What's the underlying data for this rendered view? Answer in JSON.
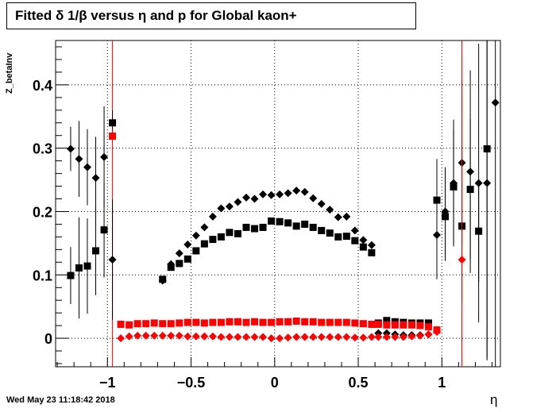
{
  "chart_data": {
    "type": "scatter",
    "title": "Fitted δ 1/β versus η and p for Global kaon+",
    "xlabel": "η",
    "ylabel": "Z_betaInv",
    "xlim": [
      -1.31,
      1.35
    ],
    "ylim": [
      -0.045,
      0.47
    ],
    "xticks": [
      -1,
      -0.5,
      0,
      0.5,
      1
    ],
    "yticks": [
      0,
      0.1,
      0.2,
      0.3,
      0.4
    ],
    "xtick_labels": [
      "−1",
      "−0.5",
      "0",
      "0.5",
      "1"
    ],
    "ytick_labels": [
      "0",
      "0.1",
      "0.2",
      "0.3",
      "0.4"
    ],
    "grid": true,
    "legend": "none",
    "vertical_lines": [
      -0.97,
      1.12
    ],
    "vline_color": "#ff0000",
    "series": [
      {
        "marker": "square",
        "color": "#000000",
        "x": [
          -1.22,
          -1.17,
          -1.12,
          -1.07,
          -1.02,
          -0.97,
          -0.67,
          -0.62,
          -0.57,
          -0.52,
          -0.47,
          -0.42,
          -0.37,
          -0.32,
          -0.27,
          -0.22,
          -0.17,
          -0.12,
          -0.07,
          -0.02,
          0.03,
          0.08,
          0.13,
          0.18,
          0.23,
          0.28,
          0.33,
          0.38,
          0.43,
          0.48,
          0.53,
          0.58,
          0.62,
          0.67,
          0.72,
          0.77,
          0.82,
          0.87,
          0.92,
          0.97,
          1.02,
          1.07,
          1.12,
          1.17,
          1.22,
          1.27
        ],
        "y": [
          0.099,
          0.111,
          0.114,
          0.138,
          0.171,
          0.34,
          0.093,
          0.112,
          0.118,
          0.125,
          0.138,
          0.149,
          0.156,
          0.16,
          0.167,
          0.165,
          0.175,
          0.173,
          0.175,
          0.185,
          0.184,
          0.182,
          0.177,
          0.18,
          0.175,
          0.17,
          0.166,
          0.16,
          0.161,
          0.154,
          0.144,
          0.135,
          0.024,
          0.028,
          0.026,
          0.025,
          0.024,
          0.024,
          0.024,
          0.218,
          0.192,
          0.239,
          0.177,
          0.235,
          0.169,
          0.299
        ],
        "err": [
          0.045,
          0.08,
          0.075,
          0.07,
          0.075,
          0.02,
          0.005,
          0.005,
          0.005,
          0.005,
          0.005,
          0.005,
          0.005,
          0.005,
          0.005,
          0.005,
          0.005,
          0.005,
          0.005,
          0.005,
          0.005,
          0.005,
          0.005,
          0.005,
          0.005,
          0.005,
          0.005,
          0.005,
          0.005,
          0.005,
          0.005,
          0.005,
          0.003,
          0.003,
          0.003,
          0.003,
          0.003,
          0.003,
          0.003,
          0.065,
          0.07,
          0.09,
          0.12,
          0.11,
          0.08,
          0.33
        ]
      },
      {
        "marker": "diamond",
        "color": "#000000",
        "x": [
          -1.22,
          -1.17,
          -1.12,
          -1.07,
          -1.02,
          -0.97,
          -0.67,
          -0.62,
          -0.57,
          -0.52,
          -0.47,
          -0.42,
          -0.37,
          -0.32,
          -0.27,
          -0.22,
          -0.17,
          -0.12,
          -0.07,
          -0.02,
          0.03,
          0.08,
          0.13,
          0.18,
          0.23,
          0.28,
          0.33,
          0.38,
          0.43,
          0.48,
          0.53,
          0.58,
          0.62,
          0.67,
          0.72,
          0.77,
          0.82,
          0.87,
          0.92,
          0.97,
          1.02,
          1.07,
          1.12,
          1.17,
          1.22,
          1.27,
          1.32
        ],
        "y": [
          0.299,
          0.283,
          0.27,
          0.253,
          0.286,
          0.124,
          0.091,
          0.117,
          0.134,
          0.148,
          0.162,
          0.175,
          0.192,
          0.205,
          0.208,
          0.215,
          0.222,
          0.22,
          0.227,
          0.226,
          0.227,
          0.229,
          0.233,
          0.231,
          0.221,
          0.212,
          0.203,
          0.191,
          0.192,
          0.17,
          0.155,
          0.147,
          0.008,
          0.008,
          0.006,
          0.005,
          0.005,
          0.005,
          0.006,
          0.163,
          0.2,
          0.245,
          0.277,
          0.263,
          0.245,
          0.245,
          0.372
        ],
        "err": [
          0.035,
          0.06,
          0.06,
          0.065,
          0.08,
          0.095,
          0.005,
          0.005,
          0.005,
          0.005,
          0.005,
          0.005,
          0.005,
          0.005,
          0.005,
          0.005,
          0.005,
          0.005,
          0.005,
          0.005,
          0.005,
          0.005,
          0.005,
          0.005,
          0.005,
          0.005,
          0.005,
          0.005,
          0.005,
          0.005,
          0.005,
          0.005,
          0.003,
          0.003,
          0.003,
          0.003,
          0.003,
          0.003,
          0.003,
          0.07,
          0.07,
          0.1,
          0.13,
          0.16,
          0.22,
          0.28,
          0.42
        ]
      },
      {
        "marker": "square",
        "color": "#ff0000",
        "x": [
          -0.97,
          -0.92,
          -0.87,
          -0.82,
          -0.77,
          -0.72,
          -0.67,
          -0.62,
          -0.57,
          -0.52,
          -0.47,
          -0.42,
          -0.37,
          -0.32,
          -0.27,
          -0.22,
          -0.17,
          -0.12,
          -0.07,
          -0.02,
          0.03,
          0.08,
          0.13,
          0.18,
          0.23,
          0.28,
          0.33,
          0.38,
          0.43,
          0.48,
          0.53,
          0.58,
          0.62,
          0.67,
          0.72,
          0.77,
          0.82,
          0.87,
          0.92,
          0.97
        ],
        "y": [
          0.319,
          0.022,
          0.021,
          0.023,
          0.023,
          0.024,
          0.023,
          0.023,
          0.024,
          0.025,
          0.025,
          0.024,
          0.025,
          0.025,
          0.026,
          0.026,
          0.025,
          0.026,
          0.025,
          0.025,
          0.026,
          0.026,
          0.027,
          0.026,
          0.026,
          0.025,
          0.025,
          0.025,
          0.025,
          0.024,
          0.023,
          0.022,
          0.022,
          0.021,
          0.021,
          0.021,
          0.021,
          0.02,
          0.018,
          0.013
        ],
        "err": [
          0.01,
          0.004,
          0.003,
          0.003,
          0.003,
          0.003,
          0.003,
          0.003,
          0.003,
          0.003,
          0.003,
          0.003,
          0.003,
          0.003,
          0.003,
          0.003,
          0.003,
          0.003,
          0.003,
          0.003,
          0.003,
          0.003,
          0.003,
          0.003,
          0.003,
          0.003,
          0.003,
          0.003,
          0.003,
          0.003,
          0.003,
          0.003,
          0.003,
          0.003,
          0.003,
          0.003,
          0.003,
          0.003,
          0.003,
          0.006
        ]
      },
      {
        "marker": "diamond",
        "color": "#ff0000",
        "x": [
          -0.92,
          -0.87,
          -0.82,
          -0.77,
          -0.72,
          -0.67,
          -0.62,
          -0.57,
          -0.52,
          -0.47,
          -0.42,
          -0.37,
          -0.32,
          -0.27,
          -0.22,
          -0.17,
          -0.12,
          -0.07,
          -0.02,
          0.03,
          0.08,
          0.13,
          0.18,
          0.23,
          0.28,
          0.33,
          0.38,
          0.43,
          0.48,
          0.53,
          0.58,
          0.62,
          0.67,
          0.72,
          0.77,
          0.82,
          0.87,
          0.92,
          0.97,
          1.12
        ],
        "y": [
          0.0,
          0.003,
          0.004,
          0.004,
          0.004,
          0.004,
          0.004,
          0.004,
          0.003,
          0.003,
          0.003,
          0.003,
          0.002,
          0.002,
          0.002,
          0.002,
          0.002,
          0.002,
          0.0,
          0.0,
          0.001,
          0.002,
          0.002,
          0.002,
          0.002,
          0.002,
          0.002,
          0.002,
          0.001,
          0.001,
          0.002,
          0.002,
          0.002,
          0.002,
          0.002,
          0.003,
          0.004,
          0.006,
          0.01,
          0.124
        ],
        "err": [
          0.004,
          0.003,
          0.003,
          0.003,
          0.003,
          0.003,
          0.003,
          0.003,
          0.003,
          0.003,
          0.003,
          0.003,
          0.003,
          0.003,
          0.003,
          0.003,
          0.003,
          0.003,
          0.003,
          0.003,
          0.003,
          0.003,
          0.003,
          0.003,
          0.003,
          0.003,
          0.003,
          0.003,
          0.003,
          0.003,
          0.003,
          0.003,
          0.003,
          0.003,
          0.003,
          0.003,
          0.003,
          0.003,
          0.005,
          0.4
        ]
      }
    ]
  },
  "header": {
    "title": "Fitted δ 1/β versus η and p for Global kaon+"
  },
  "footer": {
    "timestamp": "Wed May 23 11:18:42 2018"
  }
}
